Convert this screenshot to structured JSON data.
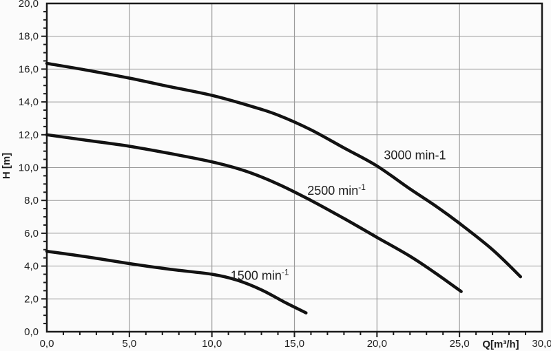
{
  "chart_data": {
    "type": "line",
    "title": "",
    "xlabel": "Q[m³/h]",
    "ylabel": "H [m]",
    "xlim": [
      0,
      30
    ],
    "ylim": [
      0,
      20
    ],
    "grid": true,
    "legend_position": "inline-labels",
    "x_major_step": 5,
    "x_minor_step": 1,
    "y_major_step": 2,
    "y_minor_step": 0.5,
    "x_tick_values": [
      0,
      5,
      10,
      15,
      20,
      25,
      30
    ],
    "x_tick_labels": [
      "0,0",
      "5,0",
      "10,0",
      "15,0",
      "20,0",
      "25,0",
      "30,0"
    ],
    "y_tick_values": [
      0,
      2,
      4,
      6,
      8,
      10,
      12,
      14,
      16,
      18,
      20
    ],
    "y_tick_labels": [
      "0,0",
      "2,0",
      "4,0",
      "6,0",
      "8,0",
      "10,0",
      "12,0",
      "14,0",
      "16,0",
      "18,0",
      "20,0"
    ],
    "series": [
      {
        "id": "3000",
        "name": "3000 min-1",
        "label_text": "3000 min-1",
        "label_sup": "",
        "label_anchor": {
          "q": 22.3,
          "h": 10.75
        },
        "points": [
          [
            0,
            16.35
          ],
          [
            2.5,
            15.92
          ],
          [
            5,
            15.45
          ],
          [
            7.5,
            14.92
          ],
          [
            10,
            14.4
          ],
          [
            12.5,
            13.7
          ],
          [
            14,
            13.2
          ],
          [
            16,
            12.3
          ],
          [
            18,
            11.2
          ],
          [
            20,
            10.1
          ],
          [
            22,
            8.7
          ],
          [
            23.5,
            7.7
          ],
          [
            25,
            6.6
          ],
          [
            27,
            5.0
          ],
          [
            28.7,
            3.35
          ]
        ]
      },
      {
        "id": "2500",
        "name": "2500 min⁻¹",
        "label_text": "2500 min",
        "label_sup": "-1",
        "label_anchor": {
          "q": 17.55,
          "h": 8.6
        },
        "points": [
          [
            0,
            12.0
          ],
          [
            2.5,
            11.65
          ],
          [
            5,
            11.3
          ],
          [
            7.5,
            10.85
          ],
          [
            10,
            10.35
          ],
          [
            12,
            9.8
          ],
          [
            14,
            9.0
          ],
          [
            16,
            8.0
          ],
          [
            18,
            6.9
          ],
          [
            20,
            5.75
          ],
          [
            22,
            4.6
          ],
          [
            23.5,
            3.6
          ],
          [
            25.1,
            2.45
          ]
        ]
      },
      {
        "id": "1500",
        "name": "1500 min⁻¹",
        "label_text": "1500 min",
        "label_sup": "-1",
        "label_anchor": {
          "q": 12.9,
          "h": 3.42
        },
        "points": [
          [
            0,
            4.9
          ],
          [
            2.5,
            4.55
          ],
          [
            5,
            4.15
          ],
          [
            7.5,
            3.8
          ],
          [
            10,
            3.5
          ],
          [
            11.5,
            3.15
          ],
          [
            13,
            2.55
          ],
          [
            14.5,
            1.75
          ],
          [
            15.7,
            1.15
          ]
        ]
      }
    ],
    "colors": {
      "curve": "#121212",
      "grid": "#9b9b9b",
      "axis": "#1a1a1a",
      "text": "#212121",
      "background": "#fbfbfb"
    }
  }
}
